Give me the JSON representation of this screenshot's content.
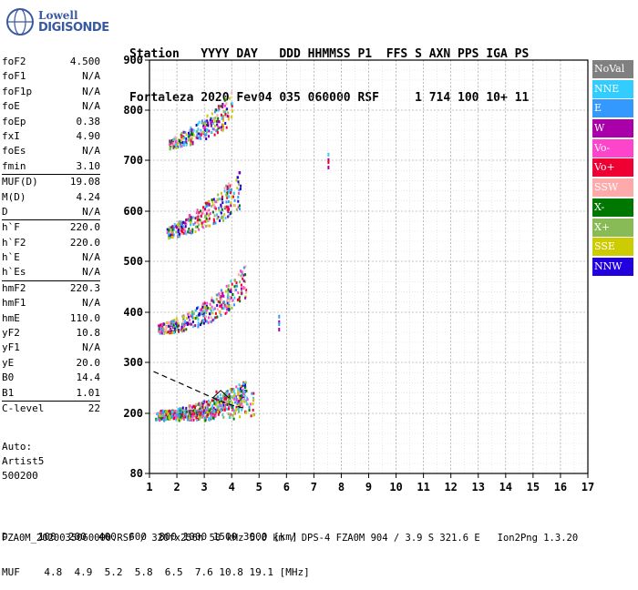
{
  "logo": {
    "line1": "Lowell",
    "line2": "DIGISONDE"
  },
  "header": {
    "row1": "Station   YYYY DAY   DDD HHMMSS P1  FFS S AXN PPS IGA PS",
    "row2": "Fortaleza 2020 Fev04 035 060000 RSF     1 714 100 10+ 11"
  },
  "params": [
    {
      "name": "foF2",
      "value": "4.500"
    },
    {
      "name": "foF1",
      "value": "N/A"
    },
    {
      "name": "foF1p",
      "value": "N/A"
    },
    {
      "name": "foE",
      "value": "N/A"
    },
    {
      "name": "foEp",
      "value": "0.38"
    },
    {
      "name": "fxI",
      "value": "4.90"
    },
    {
      "name": "foEs",
      "value": "N/A"
    },
    {
      "name": "fmin",
      "value": "3.10"
    },
    {
      "name": "MUF(D)",
      "value": "19.08"
    },
    {
      "name": "M(D)",
      "value": "4.24"
    },
    {
      "name": "D",
      "value": "N/A"
    },
    {
      "name": "h`F",
      "value": "220.0"
    },
    {
      "name": "h`F2",
      "value": "220.0"
    },
    {
      "name": "h`E",
      "value": "N/A"
    },
    {
      "name": "h`Es",
      "value": "N/A"
    },
    {
      "name": "hmF2",
      "value": "220.3"
    },
    {
      "name": "hmF1",
      "value": "N/A"
    },
    {
      "name": "hmE",
      "value": "110.0"
    },
    {
      "name": "yF2",
      "value": "10.8"
    },
    {
      "name": "yF1",
      "value": "N/A"
    },
    {
      "name": "yE",
      "value": "20.0"
    },
    {
      "name": "B0",
      "value": "14.4"
    },
    {
      "name": "B1",
      "value": "1.01"
    },
    {
      "name": "C-level",
      "value": "22"
    }
  ],
  "auto": {
    "line1": "Auto:",
    "line2": "Artist5",
    "line3": "500200"
  },
  "legend": [
    {
      "label": "NoVal",
      "color": "#808080"
    },
    {
      "label": "NNE",
      "color": "#33ccff"
    },
    {
      "label": "E",
      "color": "#3399ff"
    },
    {
      "label": "W",
      "color": "#aa00aa"
    },
    {
      "label": "Vo-",
      "color": "#ff44cc"
    },
    {
      "label": "Vo+",
      "color": "#ee0033"
    },
    {
      "label": "SSW",
      "color": "#ffaaaa"
    },
    {
      "label": "X-",
      "color": "#007700"
    },
    {
      "label": "X+",
      "color": "#88bb55"
    },
    {
      "label": "SSE",
      "color": "#cccc00"
    },
    {
      "label": "NNW",
      "color": "#2200dd"
    }
  ],
  "footer": {
    "row1": "D     100  200  400  600  800 1000 1500 3000 [km]",
    "row2": "MUF    4.8  4.9  5.2  5.8  6.5  7.6 10.8 19.1 [MHz]",
    "row3": "FZA0M_2020035060000.RSF / 320fx256h 50 kHz 5.0 km / DPS-4 FZA0M 904 / 3.9 S 321.6 E   Ion2Png 1.3.20"
  },
  "chart_data": {
    "type": "scatter",
    "x_ticks": [
      "1",
      "2",
      "3",
      "4",
      "5",
      "6",
      "7",
      "8",
      "9",
      "10",
      "11",
      "12",
      "13",
      "14",
      "15",
      "16",
      "17"
    ],
    "y_ticks": [
      "80",
      "200",
      "300",
      "400",
      "500",
      "600",
      "700",
      "800",
      "900"
    ],
    "xlim": [
      1,
      17
    ],
    "ylim": [
      80,
      900
    ],
    "grid": true,
    "series": [
      {
        "name": "F-trace 1st hop",
        "x": [
          1.3,
          1.8,
          2.3,
          2.8,
          3.3,
          3.8,
          4.2,
          4.5
        ],
        "y": [
          195,
          198,
          202,
          206,
          212,
          222,
          232,
          242
        ]
      },
      {
        "name": "F-trace 2nd hop",
        "x": [
          1.3,
          1.8,
          2.3,
          2.8,
          3.3,
          3.8,
          4.2,
          4.5
        ],
        "y": [
          365,
          370,
          378,
          388,
          402,
          420,
          440,
          455
        ]
      },
      {
        "name": "F-trace 3rd hop",
        "x": [
          1.6,
          2.0,
          2.5,
          3.0,
          3.5,
          4.0,
          4.3
        ],
        "y": [
          555,
          562,
          572,
          585,
          600,
          618,
          635
        ]
      },
      {
        "name": "F-trace 4th hop",
        "x": [
          1.7,
          2.1,
          2.6,
          3.1,
          3.6,
          4.0
        ],
        "y": [
          730,
          738,
          748,
          762,
          780,
          800
        ]
      },
      {
        "name": "Spurious echoes",
        "x": [
          5.7,
          5.7,
          7.5,
          7.5
        ],
        "y": [
          395,
          380,
          715,
          700
        ]
      },
      {
        "name": "Fitted profile",
        "x": [
          1.15,
          2.0,
          3.0,
          3.5,
          4.0,
          4.5
        ],
        "y": [
          282,
          262,
          238,
          226,
          216,
          210
        ]
      }
    ]
  }
}
